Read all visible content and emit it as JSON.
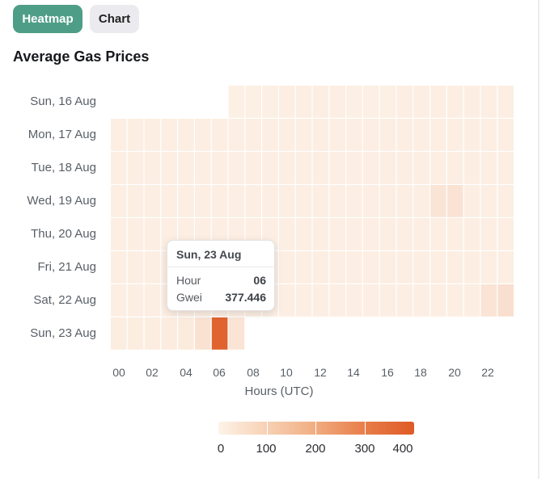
{
  "tabs": [
    {
      "label": "Heatmap",
      "active": true
    },
    {
      "label": "Chart",
      "active": false
    }
  ],
  "colors": {
    "accent": "#4e9e87",
    "scale_low": "#fdf3e8",
    "scale_high": "#de5a25"
  },
  "chart_data": {
    "type": "heatmap",
    "title": "Average Gas Prices",
    "xlabel": "Hours (UTC)",
    "ylabel": "",
    "days": [
      "Sun, 16 Aug",
      "Mon, 17 Aug",
      "Tue, 18 Aug",
      "Wed, 19 Aug",
      "Thu, 20 Aug",
      "Fri, 21 Aug",
      "Sat, 22 Aug",
      "Sun, 23 Aug"
    ],
    "x_tick_labels": [
      "00",
      "02",
      "04",
      "06",
      "08",
      "10",
      "12",
      "14",
      "16",
      "18",
      "20",
      "22"
    ],
    "values": [
      [
        null,
        null,
        null,
        null,
        null,
        null,
        null,
        11,
        11,
        11,
        12,
        12,
        12,
        12,
        11,
        11,
        11,
        12,
        12,
        12,
        12,
        12,
        13,
        13
      ],
      [
        12,
        12,
        12,
        12,
        12,
        12,
        12,
        12,
        12,
        12,
        12,
        12,
        12,
        12,
        12,
        12,
        12,
        12,
        12,
        12,
        12,
        12,
        12,
        12
      ],
      [
        12,
        12,
        12,
        12,
        12,
        12,
        12,
        12,
        12,
        12,
        12,
        12,
        12,
        12,
        12,
        12,
        12,
        12,
        12,
        12,
        12,
        12,
        12,
        12
      ],
      [
        12,
        12,
        12,
        12,
        12,
        12,
        12,
        12,
        12,
        12,
        12,
        12,
        12,
        12,
        12,
        12,
        12,
        12,
        12,
        40,
        42,
        12,
        12,
        12
      ],
      [
        12,
        12,
        12,
        12,
        12,
        12,
        12,
        12,
        12,
        12,
        12,
        12,
        12,
        12,
        12,
        12,
        12,
        12,
        12,
        12,
        12,
        12,
        12,
        12
      ],
      [
        12,
        12,
        12,
        12,
        12,
        12,
        12,
        12,
        12,
        12,
        12,
        12,
        12,
        12,
        12,
        12,
        12,
        12,
        12,
        12,
        12,
        12,
        12,
        12
      ],
      [
        12,
        12,
        12,
        12,
        12,
        12,
        12,
        12,
        12,
        12,
        12,
        12,
        12,
        12,
        12,
        12,
        12,
        12,
        12,
        12,
        12,
        12,
        38,
        52
      ],
      [
        15,
        15,
        15,
        18,
        22,
        45,
        377.446,
        40,
        null,
        null,
        null,
        null,
        null,
        null,
        null,
        null,
        null,
        null,
        null,
        null,
        null,
        null,
        null,
        null
      ]
    ],
    "color_scale": {
      "min": 0,
      "max": 400,
      "tick_labels": [
        "0",
        "100",
        "200",
        "300",
        "400"
      ]
    },
    "tooltip": {
      "title": "Sun, 23 Aug",
      "rows": [
        {
          "key": "Hour",
          "value": "06"
        },
        {
          "key": "Gwei",
          "value": "377.446"
        }
      ]
    }
  }
}
